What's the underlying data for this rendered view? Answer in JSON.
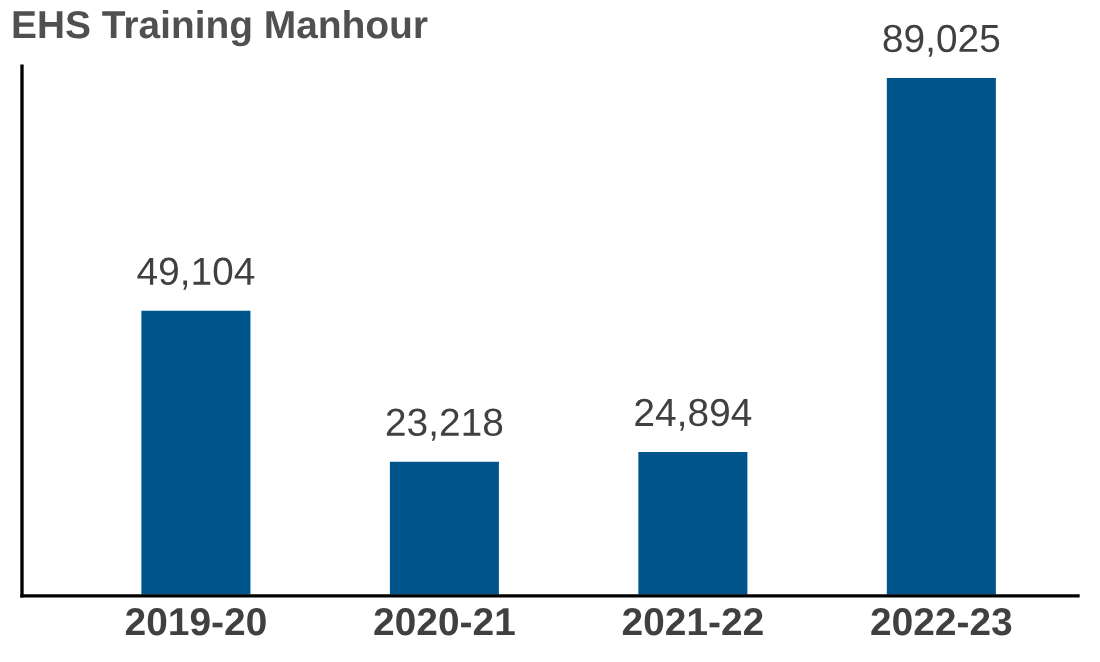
{
  "chart_data": {
    "type": "bar",
    "title": "EHS Training Manhour",
    "categories": [
      "2019-20",
      "2020-21",
      "2021-22",
      "2022-23"
    ],
    "values": [
      49104,
      23218,
      24894,
      89025
    ],
    "value_labels": [
      "49,104",
      "23,218",
      "24,894",
      "89,025"
    ],
    "color": "#00548c",
    "grid": false,
    "legend": false
  }
}
